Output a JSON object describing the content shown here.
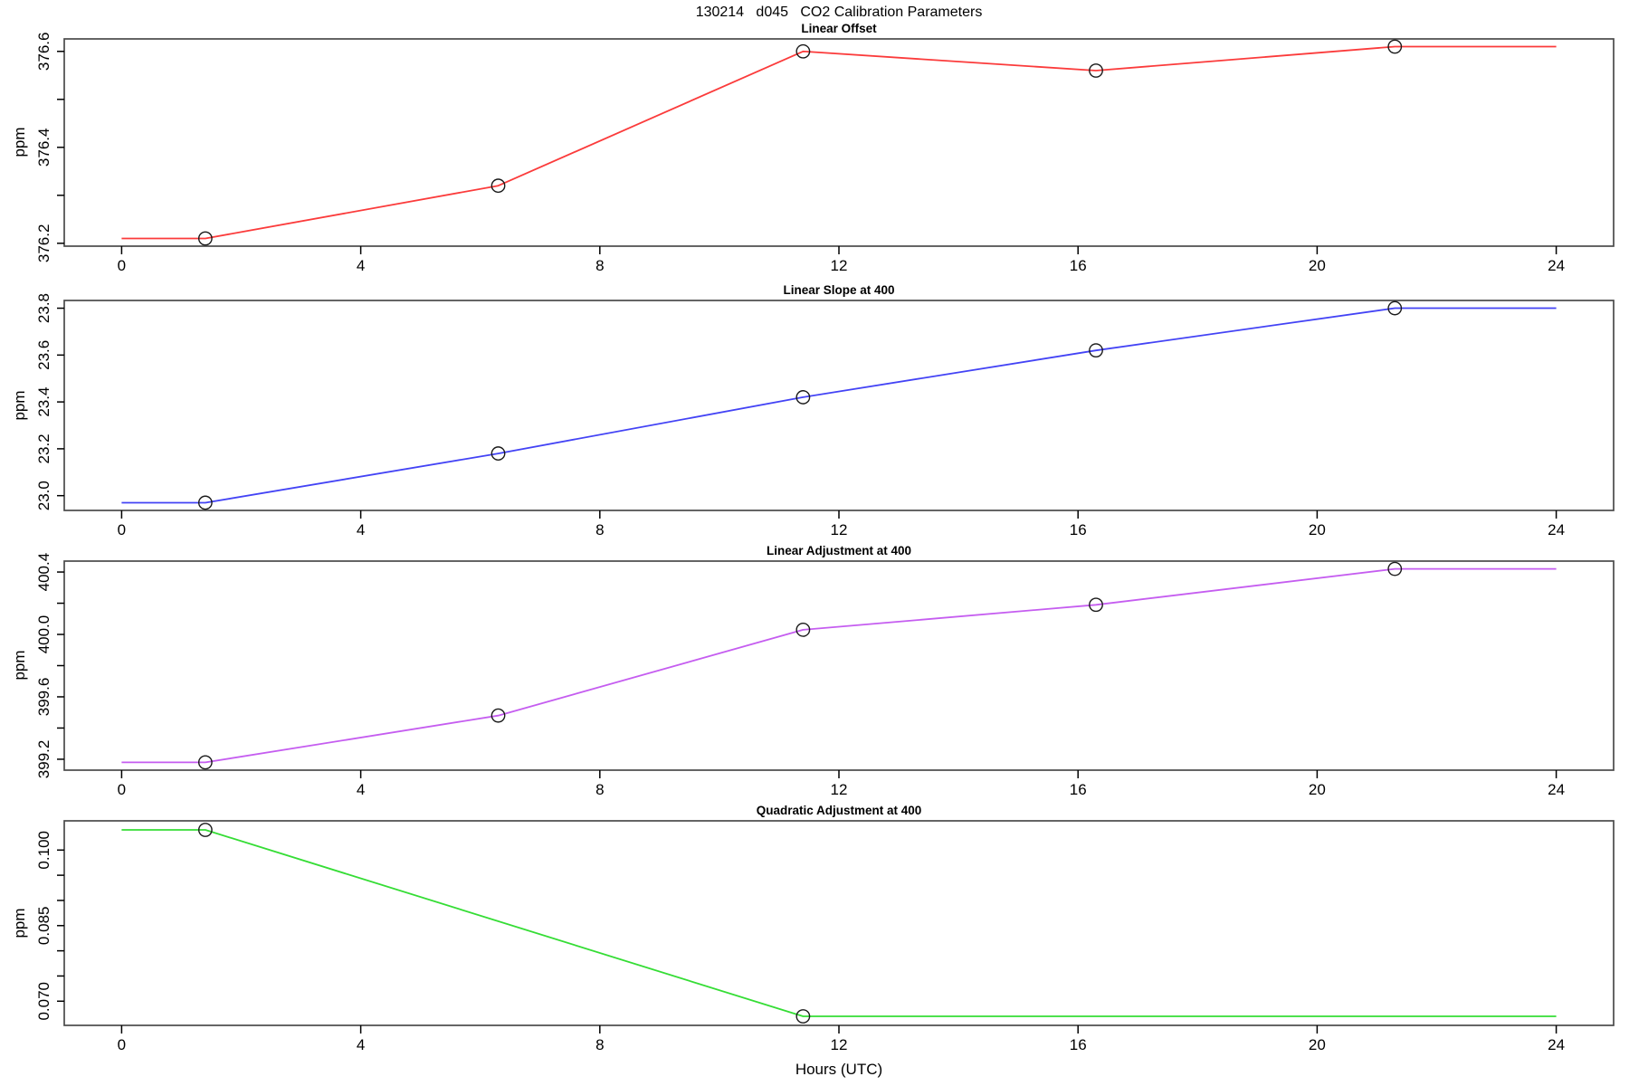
{
  "main_title": "130214   d045   CO2 Calibration Parameters",
  "xlabel": "Hours (UTC)",
  "x_ticks": {
    "values": [
      0,
      4,
      8,
      12,
      16,
      20,
      24
    ],
    "labels": [
      "0",
      "4",
      "8",
      "12",
      "16",
      "20",
      "24"
    ]
  },
  "xlim": [
    -0.96,
    24.96
  ],
  "chart_data": [
    {
      "type": "line",
      "title": "Linear Offset",
      "ylabel": "ppm",
      "color": "#fb3b3b",
      "marker_color": "#1a1a1a",
      "ylim": [
        376.194,
        376.626
      ],
      "y_ticks": [
        {
          "v": 376.2,
          "label": "376.2"
        },
        {
          "v": 376.3,
          "label": ""
        },
        {
          "v": 376.4,
          "label": "376.4"
        },
        {
          "v": 376.5,
          "label": ""
        },
        {
          "v": 376.6,
          "label": "376.6"
        }
      ],
      "line": {
        "hours": [
          0,
          1.4,
          6.3,
          11.4,
          16.3,
          21.3,
          24
        ],
        "values": [
          376.21,
          376.21,
          376.32,
          376.6,
          376.56,
          376.61,
          376.61
        ]
      },
      "markers": {
        "hours": [
          1.4,
          6.3,
          11.4,
          16.3,
          21.3
        ],
        "values": [
          376.21,
          376.32,
          376.6,
          376.56,
          376.61
        ]
      }
    },
    {
      "type": "line",
      "title": "Linear Slope at 400",
      "ylabel": "ppm",
      "color": "#4343f5",
      "marker_color": "#1a1a1a",
      "ylim": [
        22.937,
        23.833
      ],
      "y_ticks": [
        {
          "v": 23.0,
          "label": "23.0"
        },
        {
          "v": 23.2,
          "label": "23.2"
        },
        {
          "v": 23.4,
          "label": "23.4"
        },
        {
          "v": 23.6,
          "label": "23.6"
        },
        {
          "v": 23.8,
          "label": "23.8"
        }
      ],
      "line": {
        "hours": [
          0,
          1.4,
          6.3,
          11.4,
          16.3,
          21.3,
          24
        ],
        "values": [
          22.97,
          22.97,
          23.18,
          23.42,
          23.62,
          23.8,
          23.8
        ]
      },
      "markers": {
        "hours": [
          1.4,
          6.3,
          11.4,
          16.3,
          21.3
        ],
        "values": [
          22.97,
          23.18,
          23.42,
          23.62,
          23.8
        ]
      }
    },
    {
      "type": "line",
      "title": "Linear Adjustment at 400",
      "ylabel": "ppm",
      "color": "#c55df0",
      "marker_color": "#1a1a1a",
      "ylim": [
        399.13,
        400.47
      ],
      "y_ticks": [
        {
          "v": 399.2,
          "label": "399.2"
        },
        {
          "v": 399.4,
          "label": ""
        },
        {
          "v": 399.6,
          "label": "399.6"
        },
        {
          "v": 399.8,
          "label": ""
        },
        {
          "v": 400.0,
          "label": "400.0"
        },
        {
          "v": 400.2,
          "label": ""
        },
        {
          "v": 400.4,
          "label": "400.4"
        }
      ],
      "line": {
        "hours": [
          0,
          1.4,
          6.3,
          11.4,
          16.3,
          21.3,
          24
        ],
        "values": [
          399.18,
          399.18,
          399.48,
          400.03,
          400.19,
          400.42,
          400.42
        ]
      },
      "markers": {
        "hours": [
          1.4,
          6.3,
          11.4,
          16.3,
          21.3
        ],
        "values": [
          399.18,
          399.48,
          400.03,
          400.19,
          400.42
        ]
      }
    },
    {
      "type": "line",
      "title": "Quadratic Adjustment at 400",
      "ylabel": "ppm",
      "color": "#35dd35",
      "marker_color": "#1a1a1a",
      "ylim": [
        0.0652,
        0.1058
      ],
      "y_ticks": [
        {
          "v": 0.07,
          "label": "0.070"
        },
        {
          "v": 0.075,
          "label": ""
        },
        {
          "v": 0.08,
          "label": ""
        },
        {
          "v": 0.085,
          "label": "0.085"
        },
        {
          "v": 0.09,
          "label": ""
        },
        {
          "v": 0.095,
          "label": ""
        },
        {
          "v": 0.1,
          "label": "0.100"
        }
      ],
      "line": {
        "hours": [
          0,
          1.4,
          11.4,
          24
        ],
        "values": [
          0.104,
          0.104,
          0.067,
          0.067
        ]
      },
      "markers": {
        "hours": [
          1.4,
          11.4
        ],
        "values": [
          0.104,
          0.067
        ]
      }
    }
  ]
}
